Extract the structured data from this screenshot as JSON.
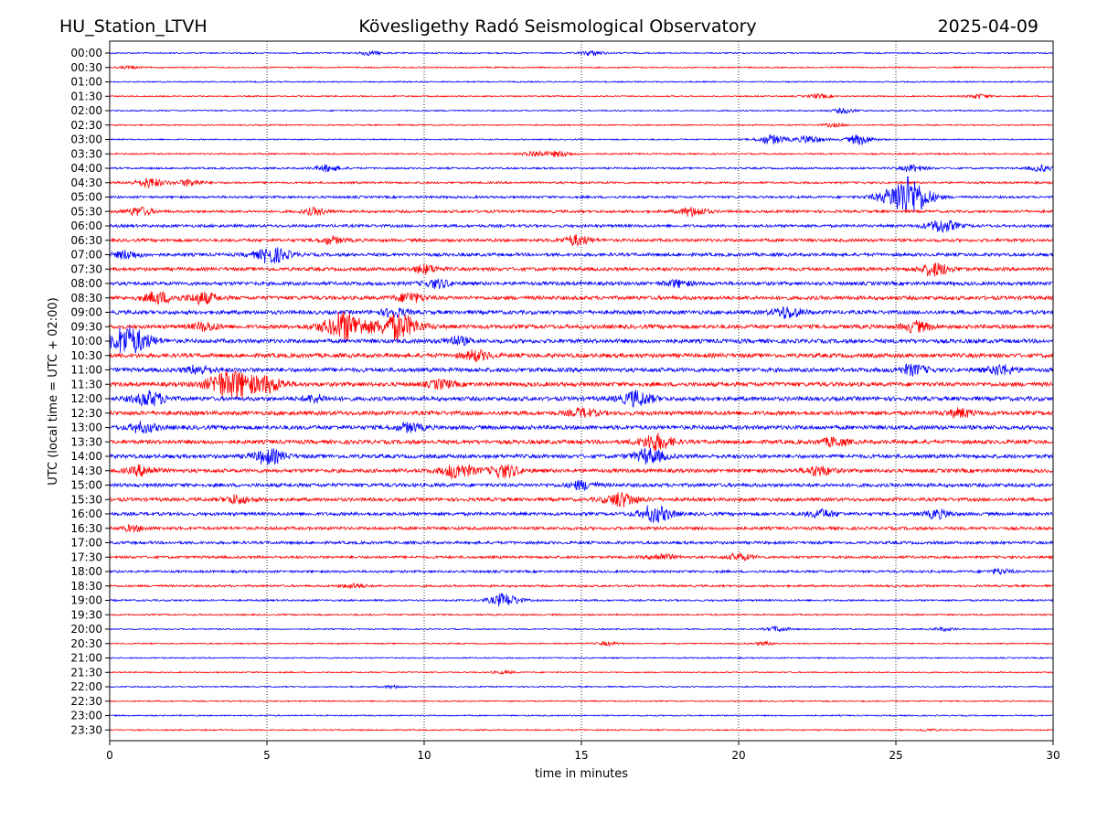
{
  "header": {
    "station": "HU_Station_LTVH",
    "title": "Kövesligethy Radó Seismological Observatory",
    "date": "2025-04-09"
  },
  "chart_data": {
    "type": "line",
    "xlabel": "time in minutes",
    "ylabel": "UTC (local time = UTC + 02:00)",
    "xlim": [
      0,
      30
    ],
    "x_ticks": [
      "0",
      "5",
      "10",
      "15",
      "20",
      "25",
      "30"
    ],
    "grid": "vertical dotted lines at 5-minute intervals",
    "colors": {
      "odd_rows": "#0000ff",
      "even_rows": "#ff0000"
    },
    "rows": [
      {
        "label": "00:00",
        "color": "#0000ff",
        "events": [
          {
            "t": 15.3,
            "amp": 0.3
          },
          {
            "t": 8.2,
            "amp": 0.25
          }
        ]
      },
      {
        "label": "00:30",
        "color": "#ff0000",
        "events": [
          {
            "t": 0.6,
            "amp": 0.15
          }
        ]
      },
      {
        "label": "01:00",
        "color": "#0000ff",
        "events": []
      },
      {
        "label": "01:30",
        "color": "#ff0000",
        "events": [
          {
            "t": 22.5,
            "amp": 0.25
          },
          {
            "t": 27.6,
            "amp": 0.25
          }
        ]
      },
      {
        "label": "02:00",
        "color": "#0000ff",
        "events": [
          {
            "t": 23.3,
            "amp": 0.3
          }
        ]
      },
      {
        "label": "02:30",
        "color": "#ff0000",
        "events": [
          {
            "t": 23.0,
            "amp": 0.2
          }
        ]
      },
      {
        "label": "03:00",
        "color": "#0000ff",
        "events": [
          {
            "t": 21.0,
            "amp": 0.6
          },
          {
            "t": 22.2,
            "amp": 0.5
          },
          {
            "t": 23.8,
            "amp": 0.6
          }
        ]
      },
      {
        "label": "03:30",
        "color": "#ff0000",
        "events": [
          {
            "t": 13.5,
            "amp": 0.35
          },
          {
            "t": 14.3,
            "amp": 0.3
          }
        ]
      },
      {
        "label": "04:00",
        "color": "#0000ff",
        "events": [
          {
            "t": 6.9,
            "amp": 0.4
          },
          {
            "t": 25.5,
            "amp": 0.4
          },
          {
            "t": 29.6,
            "amp": 0.35
          }
        ]
      },
      {
        "label": "04:30",
        "color": "#ff0000",
        "events": [
          {
            "t": 1.2,
            "amp": 0.6
          },
          {
            "t": 2.5,
            "amp": 0.4
          }
        ]
      },
      {
        "label": "05:00",
        "color": "#0000ff",
        "events": [
          {
            "t": 25.1,
            "amp": 1.6
          },
          {
            "t": 25.5,
            "amp": 1.3
          }
        ]
      },
      {
        "label": "05:30",
        "color": "#ff0000",
        "events": [
          {
            "t": 18.5,
            "amp": 0.55
          },
          {
            "t": 0.9,
            "amp": 0.5
          },
          {
            "t": 6.5,
            "amp": 0.4
          }
        ]
      },
      {
        "label": "06:00",
        "color": "#0000ff",
        "events": [
          {
            "t": 26.4,
            "amp": 0.8
          }
        ]
      },
      {
        "label": "06:30",
        "color": "#ff0000",
        "events": [
          {
            "t": 14.8,
            "amp": 0.6
          },
          {
            "t": 7.0,
            "amp": 0.4
          }
        ]
      },
      {
        "label": "07:00",
        "color": "#0000ff",
        "events": [
          {
            "t": 5.1,
            "amp": 1.0
          },
          {
            "t": 0.5,
            "amp": 0.5
          }
        ]
      },
      {
        "label": "07:30",
        "color": "#ff0000",
        "events": [
          {
            "t": 26.2,
            "amp": 0.8
          },
          {
            "t": 10.0,
            "amp": 0.5
          }
        ]
      },
      {
        "label": "08:00",
        "color": "#0000ff",
        "events": [
          {
            "t": 10.4,
            "amp": 0.5
          },
          {
            "t": 18.0,
            "amp": 0.4
          }
        ]
      },
      {
        "label": "08:30",
        "color": "#ff0000",
        "events": [
          {
            "t": 1.5,
            "amp": 0.7
          },
          {
            "t": 2.9,
            "amp": 0.7
          },
          {
            "t": 9.5,
            "amp": 0.6
          }
        ]
      },
      {
        "label": "09:00",
        "color": "#0000ff",
        "events": [
          {
            "t": 21.5,
            "amp": 0.7
          },
          {
            "t": 9.0,
            "amp": 0.5
          }
        ]
      },
      {
        "label": "09:30",
        "color": "#ff0000",
        "events": [
          {
            "t": 7.4,
            "amp": 1.8
          },
          {
            "t": 9.1,
            "amp": 1.6
          },
          {
            "t": 3.0,
            "amp": 0.5
          },
          {
            "t": 25.6,
            "amp": 0.6
          }
        ]
      },
      {
        "label": "10:00",
        "color": "#0000ff",
        "events": [
          {
            "t": 0.5,
            "amp": 1.8
          },
          {
            "t": 11.0,
            "amp": 0.5
          }
        ]
      },
      {
        "label": "10:30",
        "color": "#ff0000",
        "events": [
          {
            "t": 11.6,
            "amp": 0.6
          }
        ]
      },
      {
        "label": "11:00",
        "color": "#0000ff",
        "events": [
          {
            "t": 2.8,
            "amp": 0.5
          },
          {
            "t": 25.5,
            "amp": 0.6
          },
          {
            "t": 28.3,
            "amp": 0.6
          }
        ]
      },
      {
        "label": "11:30",
        "color": "#ff0000",
        "events": [
          {
            "t": 3.5,
            "amp": 1.2
          },
          {
            "t": 4.1,
            "amp": 1.2
          },
          {
            "t": 5.0,
            "amp": 0.9
          },
          {
            "t": 10.5,
            "amp": 0.5
          }
        ]
      },
      {
        "label": "12:00",
        "color": "#0000ff",
        "events": [
          {
            "t": 1.2,
            "amp": 0.9
          },
          {
            "t": 16.7,
            "amp": 0.9
          },
          {
            "t": 6.5,
            "amp": 0.4
          }
        ]
      },
      {
        "label": "12:30",
        "color": "#ff0000",
        "events": [
          {
            "t": 15.0,
            "amp": 0.5
          },
          {
            "t": 27.0,
            "amp": 0.5
          }
        ]
      },
      {
        "label": "13:00",
        "color": "#0000ff",
        "events": [
          {
            "t": 1.0,
            "amp": 0.6
          },
          {
            "t": 9.5,
            "amp": 0.5
          }
        ]
      },
      {
        "label": "13:30",
        "color": "#ff0000",
        "events": [
          {
            "t": 17.3,
            "amp": 1.0
          },
          {
            "t": 23.0,
            "amp": 0.5
          }
        ]
      },
      {
        "label": "14:00",
        "color": "#0000ff",
        "events": [
          {
            "t": 5.0,
            "amp": 0.9
          },
          {
            "t": 17.1,
            "amp": 0.9
          }
        ]
      },
      {
        "label": "14:30",
        "color": "#ff0000",
        "events": [
          {
            "t": 11.0,
            "amp": 0.9
          },
          {
            "t": 12.5,
            "amp": 0.8
          },
          {
            "t": 1.0,
            "amp": 0.6
          },
          {
            "t": 22.5,
            "amp": 0.6
          }
        ]
      },
      {
        "label": "15:00",
        "color": "#0000ff",
        "events": [
          {
            "t": 15.0,
            "amp": 0.5
          }
        ]
      },
      {
        "label": "15:30",
        "color": "#ff0000",
        "events": [
          {
            "t": 16.2,
            "amp": 0.9
          },
          {
            "t": 4.0,
            "amp": 0.5
          }
        ]
      },
      {
        "label": "16:00",
        "color": "#0000ff",
        "events": [
          {
            "t": 17.3,
            "amp": 1.0
          },
          {
            "t": 22.6,
            "amp": 0.5
          },
          {
            "t": 26.3,
            "amp": 0.5
          }
        ]
      },
      {
        "label": "16:30",
        "color": "#ff0000",
        "events": [
          {
            "t": 0.7,
            "amp": 0.3
          }
        ]
      },
      {
        "label": "17:00",
        "color": "#0000ff",
        "events": []
      },
      {
        "label": "17:30",
        "color": "#ff0000",
        "events": [
          {
            "t": 17.5,
            "amp": 0.4
          },
          {
            "t": 20.0,
            "amp": 0.4
          }
        ]
      },
      {
        "label": "18:00",
        "color": "#0000ff",
        "events": [
          {
            "t": 28.3,
            "amp": 0.3
          }
        ]
      },
      {
        "label": "18:30",
        "color": "#ff0000",
        "events": [
          {
            "t": 7.7,
            "amp": 0.3
          }
        ]
      },
      {
        "label": "19:00",
        "color": "#0000ff",
        "events": [
          {
            "t": 12.5,
            "amp": 0.8
          }
        ]
      },
      {
        "label": "19:30",
        "color": "#ff0000",
        "events": []
      },
      {
        "label": "20:00",
        "color": "#0000ff",
        "events": [
          {
            "t": 21.2,
            "amp": 0.3
          },
          {
            "t": 26.5,
            "amp": 0.2
          }
        ]
      },
      {
        "label": "20:30",
        "color": "#ff0000",
        "events": [
          {
            "t": 15.8,
            "amp": 0.2
          },
          {
            "t": 20.8,
            "amp": 0.2
          }
        ]
      },
      {
        "label": "21:00",
        "color": "#0000ff",
        "events": []
      },
      {
        "label": "21:30",
        "color": "#ff0000",
        "events": [
          {
            "t": 12.5,
            "amp": 0.15
          }
        ]
      },
      {
        "label": "22:00",
        "color": "#0000ff",
        "events": [
          {
            "t": 9.0,
            "amp": 0.15
          }
        ]
      },
      {
        "label": "22:30",
        "color": "#ff0000",
        "events": []
      },
      {
        "label": "23:00",
        "color": "#0000ff",
        "events": []
      },
      {
        "label": "23:30",
        "color": "#ff0000",
        "events": [
          {
            "t": 26.0,
            "amp": 0.1
          }
        ]
      }
    ]
  }
}
